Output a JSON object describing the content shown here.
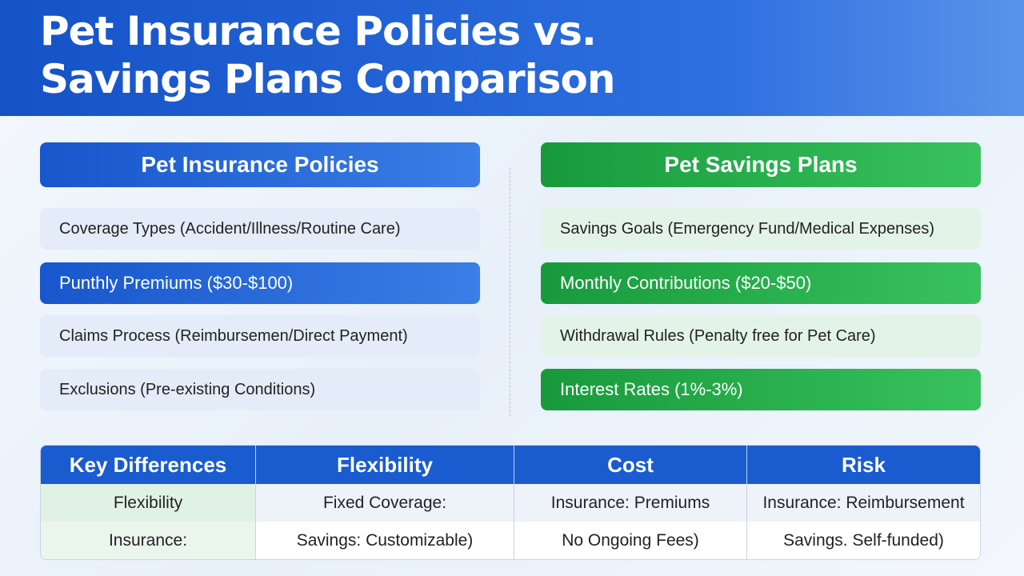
{
  "header": {
    "title_lines": [
      "Pet Insurance Policies vs.",
      "Savings Plans Comparison"
    ]
  },
  "left": {
    "heading": "Pet Insurance Policies",
    "items": [
      "Coverage Types (Accident/Illness/Routine Care)",
      "Punthly Premiums ($30-$100)",
      "Claims Process (Reimbursemen/Direct Payment)",
      "Exclusions (Pre-existing Conditions)"
    ]
  },
  "right": {
    "heading": "Pet Savings Plans",
    "items": [
      "Savings Goals (Emergency Fund/Medical Expenses)",
      "Monthly Contributions ($20-$50)",
      "Withdrawal Rules (Penalty free for Pet Care)",
      "Interest Rates (1%-3%)"
    ]
  },
  "table": {
    "header": [
      "Key Differences",
      "Flexibility",
      "Cost",
      "Risk"
    ],
    "rows": [
      [
        "Flexibility",
        "Fixed Coverage:",
        "Insurance: Premiums",
        "Insurance: Reimbursement"
      ],
      [
        "Insurance:",
        "Savings: Customizable)",
        "No Ongoing Fees)",
        "Savings. Self-funded)"
      ]
    ]
  }
}
